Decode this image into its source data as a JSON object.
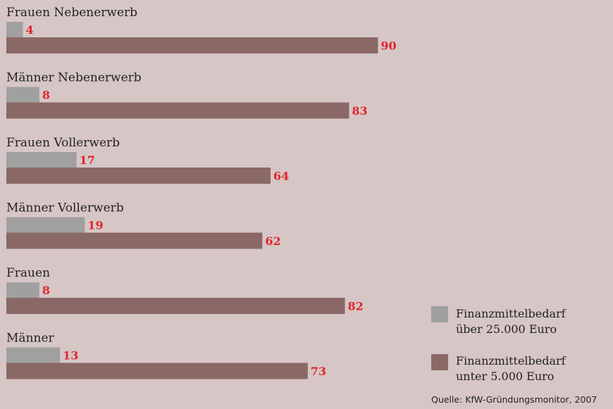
{
  "chart_data": {
    "type": "bar",
    "orientation": "horizontal",
    "categories": [
      "Frauen Nebenerwerb",
      "Männer Nebenerwerb",
      "Frauen Vollerwerb",
      "Männer Vollerwerb",
      "Frauen",
      "Männer"
    ],
    "series": [
      {
        "name_lines": [
          "Finanzmittelbedarf",
          "über 25.000 Euro"
        ],
        "color": "#a0a0a0",
        "values": [
          4,
          8,
          17,
          19,
          8,
          13
        ]
      },
      {
        "name_lines": [
          "Finanzmittelbedarf",
          "unter 5.000 Euro"
        ],
        "color": "#8a6866",
        "values": [
          90,
          83,
          64,
          62,
          82,
          73
        ]
      }
    ],
    "value_color": "#e0262a",
    "xlim": [
      0,
      100
    ],
    "grid": false,
    "legend": "bottom-right",
    "source": "Quelle: KfW-Gründungsmonitor, 2007"
  }
}
